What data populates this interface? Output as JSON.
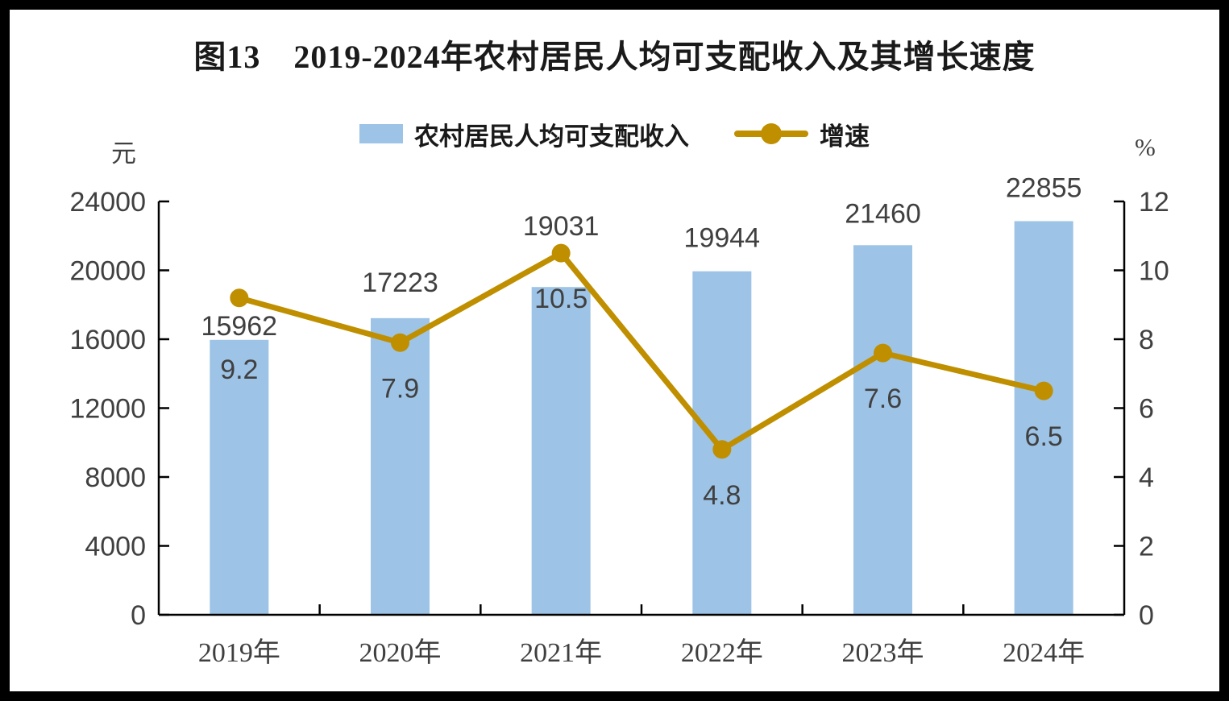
{
  "chart_data": {
    "type": "bar+line",
    "title": "图13　2019-2024年农村居民人均可支配收入及其增长速度",
    "categories": [
      "2019年",
      "2020年",
      "2021年",
      "2022年",
      "2023年",
      "2024年"
    ],
    "series": [
      {
        "name": "农村居民人均可支配收入",
        "type": "bar",
        "axis": "left",
        "color": "#9DC3E6",
        "values": [
          15962,
          17223,
          19031,
          19944,
          21460,
          22855
        ]
      },
      {
        "name": "增速",
        "type": "line",
        "axis": "right",
        "color": "#BF8F00",
        "values": [
          9.2,
          7.9,
          10.5,
          4.8,
          7.6,
          6.5
        ]
      }
    ],
    "axes": {
      "left": {
        "unit": "元",
        "min": 0,
        "max": 24000,
        "step": 4000,
        "ticks": [
          0,
          4000,
          8000,
          12000,
          16000,
          20000,
          24000
        ]
      },
      "right": {
        "unit": "%",
        "min": 0,
        "max": 12,
        "step": 2,
        "ticks": [
          0,
          2,
          4,
          6,
          8,
          10,
          12
        ]
      }
    },
    "legend": {
      "position": "top-center",
      "entries": [
        "农村居民人均可支配收入",
        "增速"
      ]
    },
    "grid": false,
    "colors": {
      "bar": "#9DC3E6",
      "line": "#BF8F00",
      "value_label_text": "#404040",
      "tick_label_text": "#404040",
      "category_label_text": "#3f3f3f",
      "axis_line": "#000000",
      "title_text": "#1a1a1a",
      "background": "#ffffff",
      "frame": "#000000"
    }
  }
}
